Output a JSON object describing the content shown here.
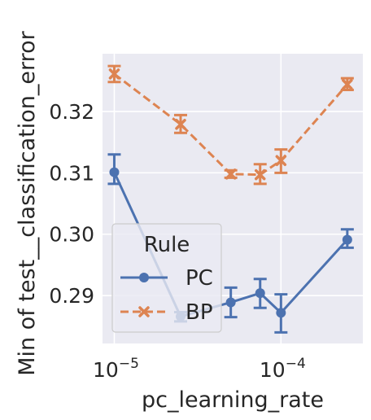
{
  "chart_data": {
    "type": "line",
    "xlabel": "pc_learning_rate",
    "ylabel": "Min of test__classification_error",
    "xscale": "log",
    "xlim": [
      8.5e-06,
      0.00031
    ],
    "ylim": [
      0.2822,
      0.3294
    ],
    "grid": true,
    "x_ticks": [
      {
        "value": 1e-05,
        "base": "10",
        "exp": "−5"
      },
      {
        "value": 0.0001,
        "base": "10",
        "exp": "−4"
      }
    ],
    "y_ticks": [
      {
        "value": 0.29,
        "label": "0.29"
      },
      {
        "value": 0.3,
        "label": "0.30"
      },
      {
        "value": 0.31,
        "label": "0.31"
      },
      {
        "value": 0.32,
        "label": "0.32"
      }
    ],
    "legend": {
      "title": "Rule",
      "position": "lower-left",
      "entries": [
        {
          "name": "PC",
          "color": "#4c72b0",
          "dash": "solid",
          "marker": "circle"
        },
        {
          "name": "BP",
          "color": "#dd8452",
          "dash": "dashed",
          "marker": "x"
        }
      ]
    },
    "series": [
      {
        "name": "PC",
        "color": "#4c72b0",
        "x": [
          1e-05,
          2.5e-05,
          5e-05,
          7.5e-05,
          0.0001,
          0.00025
        ],
        "y": [
          0.3101,
          0.2866,
          0.2889,
          0.2904,
          0.2872,
          0.2991
        ],
        "err_low": [
          0.3082,
          0.2858,
          0.2865,
          0.288,
          0.284,
          0.2978
        ],
        "err_high": [
          0.313,
          0.2873,
          0.2913,
          0.2927,
          0.2902,
          0.3008
        ]
      },
      {
        "name": "BP",
        "color": "#dd8452",
        "x": [
          1e-05,
          2.5e-05,
          5e-05,
          7.5e-05,
          0.0001,
          0.00025
        ],
        "y": [
          0.3261,
          0.3179,
          0.3098,
          0.3097,
          0.312,
          0.3244
        ],
        "err_low": [
          0.3248,
          0.3165,
          0.3092,
          0.3082,
          0.31,
          0.3235
        ],
        "err_high": [
          0.3274,
          0.3194,
          0.3104,
          0.3114,
          0.3138,
          0.3254
        ]
      }
    ]
  }
}
